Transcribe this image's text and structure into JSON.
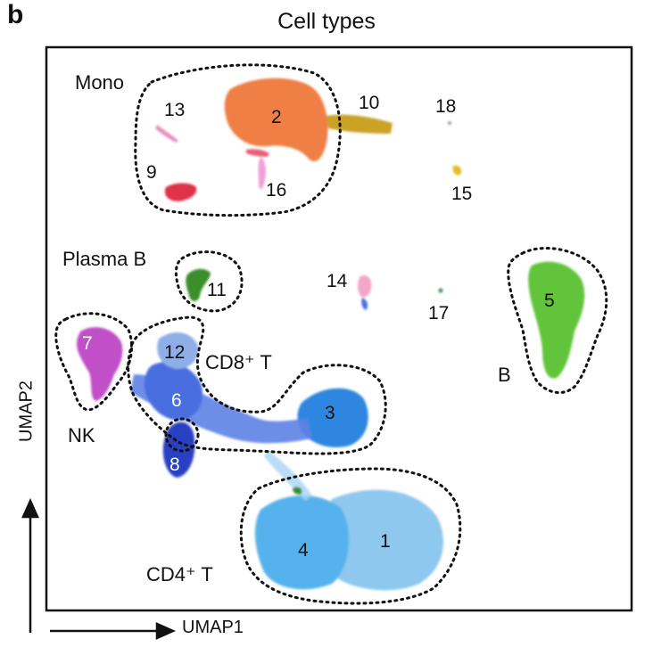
{
  "panel_letter": "b",
  "chart_data": {
    "type": "scatter",
    "title": "Cell types",
    "xlabel": "UMAP1",
    "ylabel": "UMAP2",
    "grid": false,
    "legend": "none",
    "clusters": [
      {
        "id": "1",
        "color": "#8fc8ee",
        "x": 60,
        "y": -64
      },
      {
        "id": "2",
        "color": "#ef7f45",
        "x": 4,
        "y": 74
      },
      {
        "id": "3",
        "color": "#2f86e0",
        "x": 48,
        "y": -22
      },
      {
        "id": "4",
        "color": "#56b2ec",
        "x": 40,
        "y": -66
      },
      {
        "id": "5",
        "color": "#62c43a",
        "x": 88,
        "y": 12
      },
      {
        "id": "6",
        "color": "#4a6ee0",
        "x": -22,
        "y": -16
      },
      {
        "id": "7",
        "color": "#c04fc8",
        "x": -40,
        "y": -8
      },
      {
        "id": "8",
        "color": "#2a3fc2",
        "x": -22,
        "y": -36
      },
      {
        "id": "9",
        "color": "#e0334a",
        "x": -26,
        "y": 54
      },
      {
        "id": "10",
        "color": "#c9a227",
        "x": 36,
        "y": 70
      },
      {
        "id": "11",
        "color": "#3a8f2a",
        "x": -14,
        "y": 18
      },
      {
        "id": "12",
        "color": "#8faee8",
        "x": -20,
        "y": 0
      },
      {
        "id": "13",
        "color": "#e98fc0",
        "x": -30,
        "y": 70
      },
      {
        "id": "14",
        "color": "#f2a6c8",
        "x": 28,
        "y": 16
      },
      {
        "id": "15",
        "color": "#e0c020",
        "x": 58,
        "y": 56
      },
      {
        "id": "16",
        "color": "#f0a0d6",
        "x": 0,
        "y": 56
      },
      {
        "id": "17",
        "color": "#3f8f55",
        "x": 58,
        "y": 14
      },
      {
        "id": "18",
        "color": "#9a9a9a",
        "x": 58,
        "y": 76
      }
    ],
    "annotations": {
      "mono": "Mono",
      "plasma_b": "Plasma B",
      "cd8_t": "CD8⁺ T",
      "nk": "NK",
      "b": "B",
      "cd4_t": "CD4⁺ T"
    }
  }
}
